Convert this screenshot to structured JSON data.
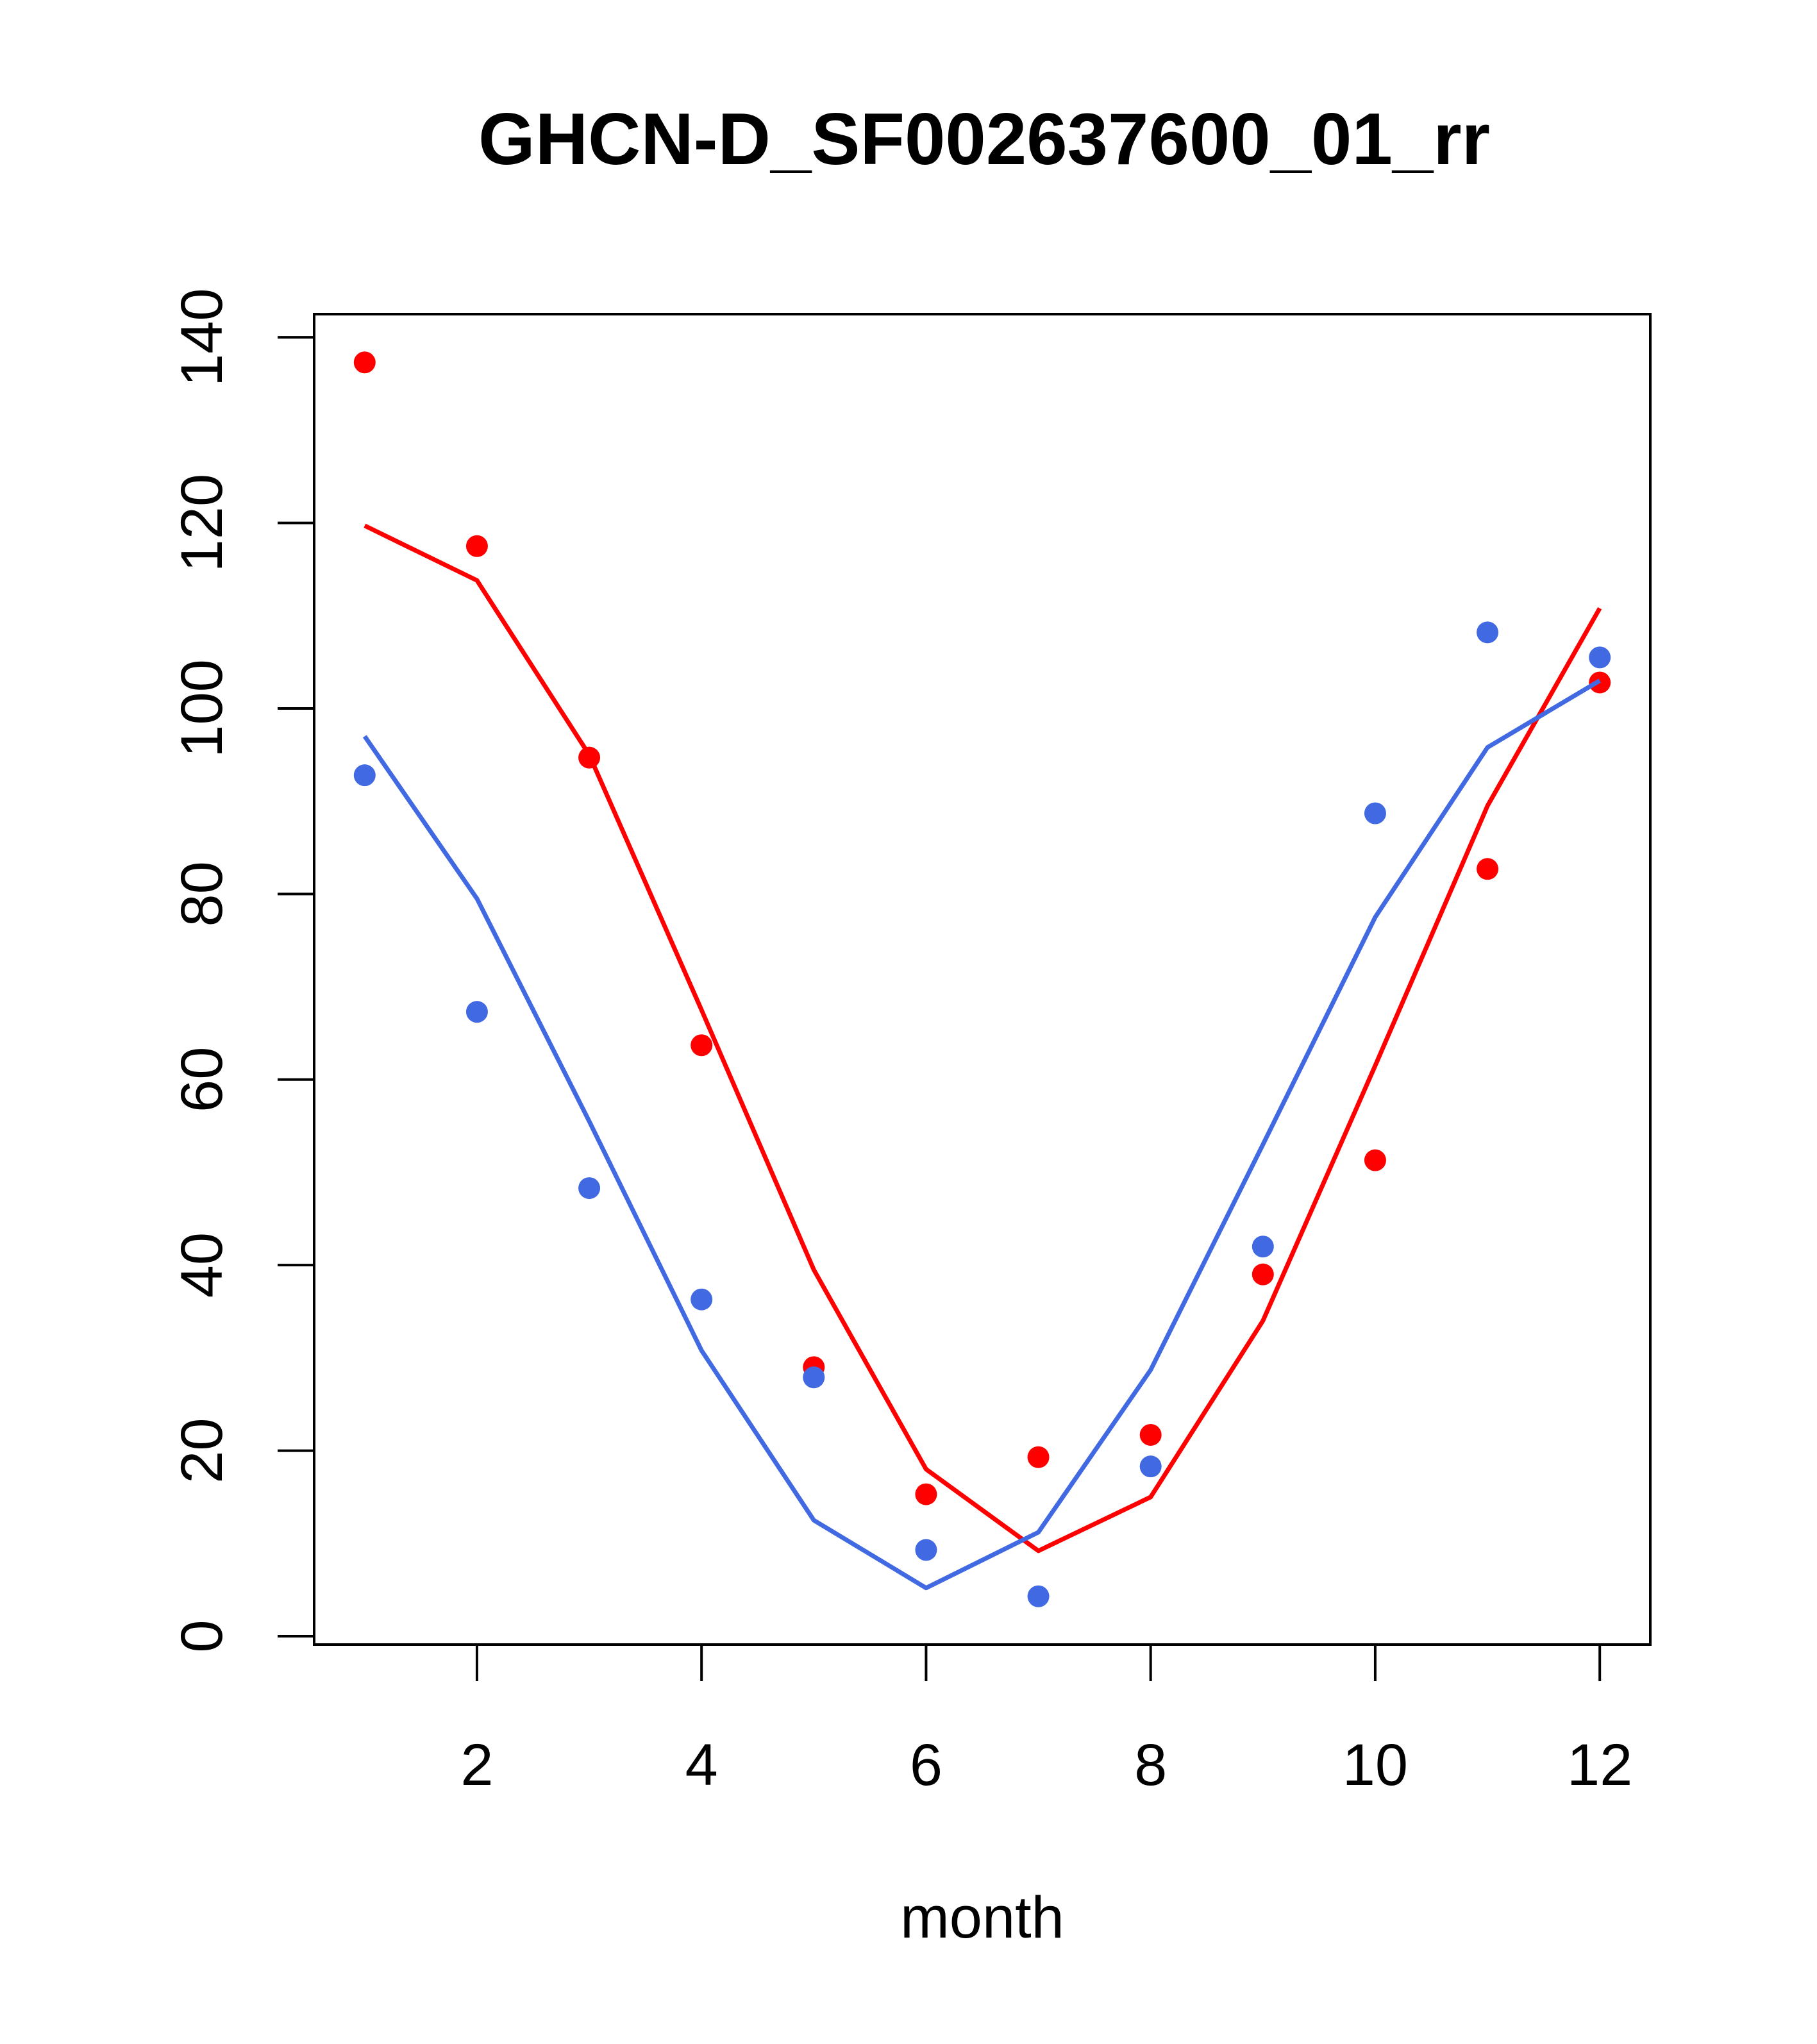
{
  "chart_data": {
    "type": "line",
    "title": "GHCN-D_SF002637600_01_rr",
    "xlabel": "month",
    "ylabel": "",
    "x": [
      1,
      2,
      3,
      4,
      5,
      6,
      7,
      8,
      9,
      10,
      11,
      12
    ],
    "xlim": [
      0.55,
      12.45
    ],
    "ylim": [
      -0.9,
      142.5
    ],
    "xticks": [
      2,
      4,
      6,
      8,
      10,
      12
    ],
    "yticks": [
      0,
      20,
      40,
      60,
      80,
      100,
      120,
      140
    ],
    "grid": false,
    "legend": "none",
    "series": [
      {
        "color": "#FF0000",
        "style": "points",
        "values": [
          137.3,
          117.5,
          94.7,
          63.7,
          29.0,
          15.3,
          19.3,
          21.7,
          39.0,
          51.3,
          82.7,
          102.8
        ]
      },
      {
        "color": "#FF0000",
        "style": "line",
        "values": [
          119.7,
          113.8,
          95.0,
          67.5,
          39.5,
          18.0,
          9.2,
          15.0,
          34.0,
          61.5,
          89.5,
          110.8
        ]
      },
      {
        "color": "#4169E1",
        "style": "points",
        "values": [
          92.8,
          67.3,
          48.3,
          36.3,
          27.9,
          9.3,
          4.3,
          18.3,
          42.0,
          88.7,
          108.2,
          105.5
        ]
      },
      {
        "color": "#4169E1",
        "style": "line",
        "values": [
          97.0,
          79.5,
          55.5,
          30.8,
          12.5,
          5.2,
          11.2,
          28.7,
          53.0,
          77.5,
          95.8,
          103.0
        ]
      }
    ]
  }
}
